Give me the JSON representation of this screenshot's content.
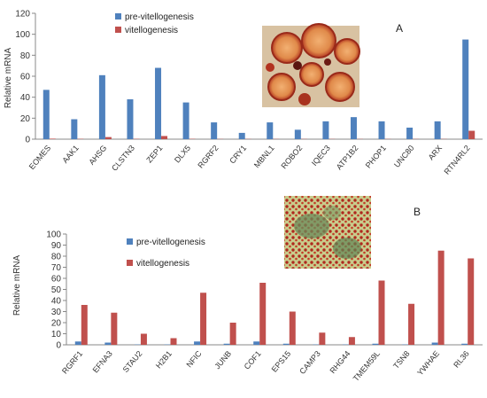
{
  "chart_data": [
    {
      "type": "bar",
      "panel_label": "A",
      "ylabel": "Relative mRNA",
      "ylim": [
        0,
        120
      ],
      "yticks": [
        0,
        20,
        40,
        60,
        80,
        100,
        120
      ],
      "grid": false,
      "legend_position": "top",
      "categories": [
        "EOMES",
        "AAK1",
        "AHSG",
        "CLSTN3",
        "ZEP1",
        "DLX5",
        "RGRF2",
        "CRY1",
        "MBNL1",
        "ROBO2",
        "IQEC3",
        "ATP1B2",
        "PHOP1",
        "UNC80",
        "ARX",
        "RTN4RL2"
      ],
      "series": [
        {
          "name": "pre-vitellogenesis",
          "color": "#4f81bd",
          "values": [
            47,
            19,
            61,
            38,
            68,
            35,
            16,
            6,
            16,
            9,
            17,
            21,
            17,
            11,
            17,
            95
          ]
        },
        {
          "name": "vitellogenesis",
          "color": "#c0504d",
          "values": [
            0.5,
            0.3,
            2,
            0.3,
            3,
            0.3,
            0.2,
            0.2,
            0.2,
            0.2,
            0.2,
            0.2,
            0.2,
            0.2,
            0.2,
            8
          ]
        }
      ]
    },
    {
      "type": "bar",
      "panel_label": "B",
      "ylabel": "Relative mRNA",
      "ylim": [
        0,
        100
      ],
      "yticks": [
        0,
        10,
        20,
        30,
        40,
        50,
        60,
        70,
        80,
        90,
        100
      ],
      "grid": false,
      "legend_position": "top-left",
      "categories": [
        "RGRF1",
        "EFNA3",
        "STAU2",
        "H2B1",
        "NFIC",
        "JUNB",
        "COF1",
        "EPS15",
        "CAMP3",
        "RHG44",
        "TMEM59L",
        "TSN8",
        "YWHAE",
        "RL36"
      ],
      "series": [
        {
          "name": "pre-vitellogenesis",
          "color": "#4f81bd",
          "values": [
            3,
            2,
            0.3,
            0.3,
            3,
            1,
            3,
            1,
            0.3,
            0.3,
            1,
            0.3,
            2,
            1
          ]
        },
        {
          "name": "vitellogenesis",
          "color": "#c0504d",
          "values": [
            36,
            29,
            10,
            6,
            47,
            20,
            56,
            30,
            11,
            7,
            58,
            37,
            85,
            78
          ]
        }
      ]
    }
  ]
}
